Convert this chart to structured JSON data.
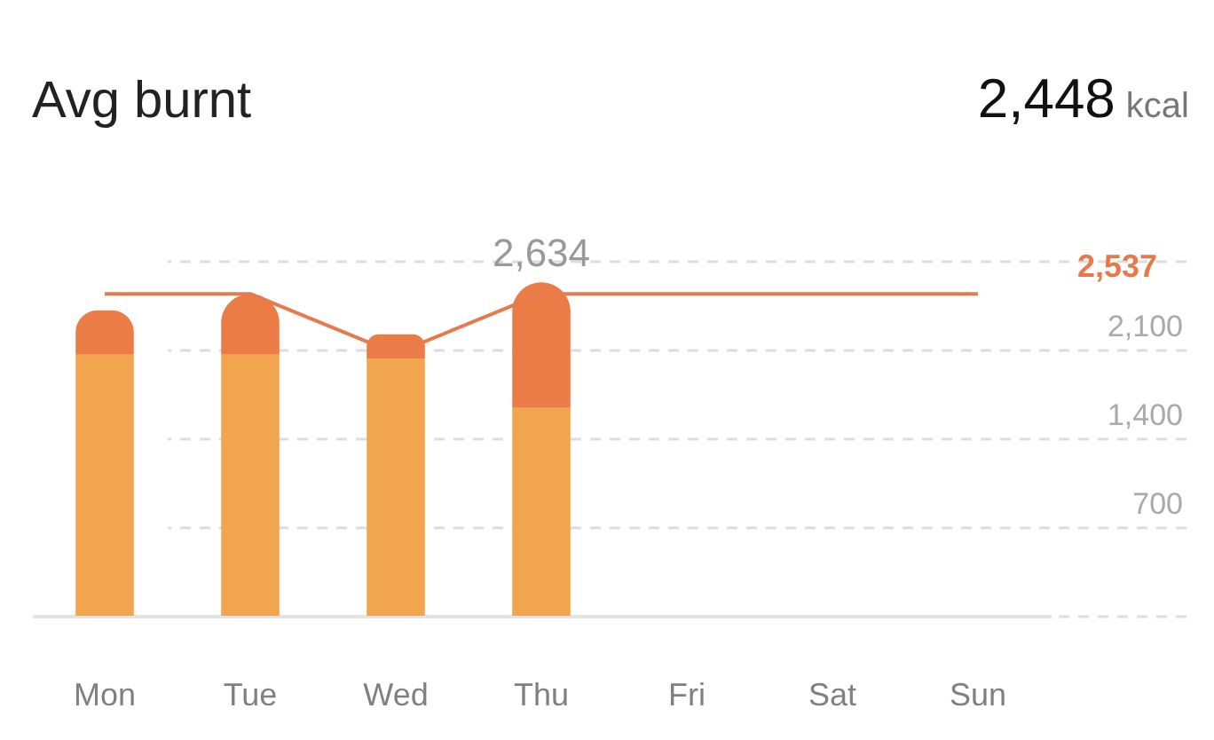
{
  "chart_data": {
    "type": "bar",
    "title": "Avg burnt",
    "stacked": true,
    "categories": [
      "Mon",
      "Tue",
      "Wed",
      "Thu",
      "Fri",
      "Sat",
      "Sun"
    ],
    "series": [
      {
        "color": "#f0a54e",
        "values": [
          2060,
          2060,
          2030,
          1640,
          null,
          null,
          null
        ]
      },
      {
        "color": "#ec7c45",
        "values": [
          350,
          480,
          190,
          990,
          null,
          null,
          null
        ]
      },
      {
        "type": "line",
        "color": "#e8794a",
        "values": [
          2540,
          2540,
          2070,
          2540,
          2540,
          2540,
          2540
        ]
      }
    ],
    "ylim": [
      0,
      2800
    ],
    "yticks": [
      {
        "value": 0,
        "label": null
      },
      {
        "value": 700,
        "label": "700"
      },
      {
        "value": 1400,
        "label": "1,400"
      },
      {
        "value": 2100,
        "label": "2,100"
      },
      {
        "value": 2800,
        "label": null
      }
    ],
    "grid": "y",
    "annotations": [
      "2,448 kcal",
      {
        "text": "2,634",
        "x": "Thu",
        "y": 2634
      },
      "2,537"
    ]
  }
}
